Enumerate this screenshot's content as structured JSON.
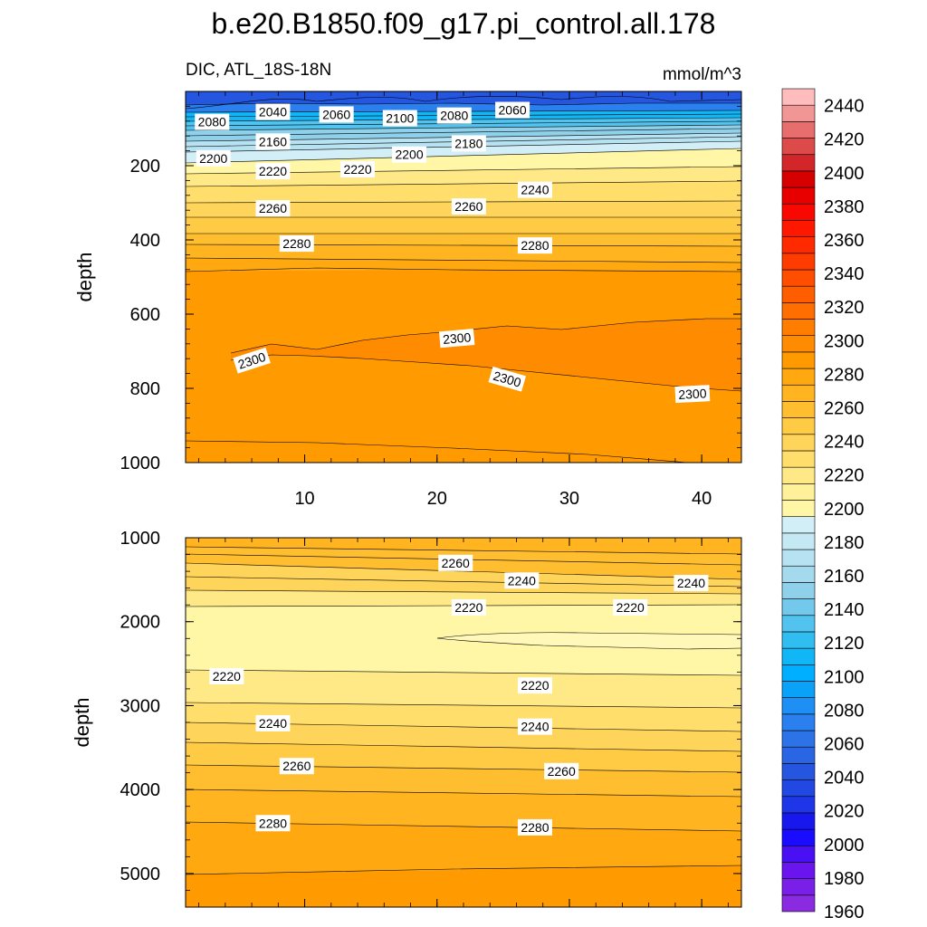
{
  "chart_data": {
    "type": "contour",
    "title": "b.e20.B1850.f09_g17.pi_control.all.178",
    "left_string": "DIC, ATL_18S-18N",
    "right_string": "mmol/m^3",
    "ylabel": "depth",
    "xlim": [
      1,
      43
    ],
    "x_ticks": [
      10,
      20,
      30,
      40
    ],
    "colorbar": {
      "levels": [
        1960,
        1970,
        1980,
        1990,
        2000,
        2010,
        2020,
        2030,
        2040,
        2050,
        2060,
        2070,
        2080,
        2090,
        2100,
        2110,
        2120,
        2130,
        2140,
        2150,
        2160,
        2170,
        2180,
        2190,
        2200,
        2210,
        2220,
        2230,
        2240,
        2250,
        2260,
        2270,
        2280,
        2290,
        2300,
        2310,
        2320,
        2330,
        2340,
        2350,
        2360,
        2370,
        2380,
        2390,
        2400,
        2410,
        2420,
        2430,
        2440,
        2450
      ],
      "labels": [
        1960,
        1980,
        2000,
        2020,
        2040,
        2060,
        2080,
        2100,
        2120,
        2140,
        2160,
        2180,
        2200,
        2220,
        2240,
        2260,
        2280,
        2300,
        2320,
        2340,
        2360,
        2380,
        2400,
        2420,
        2440
      ],
      "colors": [
        "#8a2be2",
        "#7a1fe8",
        "#6a14ee",
        "#4a10f4",
        "#1a0cff",
        "#1818ee",
        "#1f35e8",
        "#2148e2",
        "#2456df",
        "#2a66e4",
        "#2c73e8",
        "#2a80ee",
        "#1e8ff4",
        "#0aa1f8",
        "#00afff",
        "#10b6f6",
        "#30bdf0",
        "#52c3ee",
        "#72c9ec",
        "#8fd1ea",
        "#a4d9ee",
        "#b6e2f2",
        "#c4e8f4",
        "#d2eef6",
        "#fff6a6",
        "#fff09a",
        "#ffe886",
        "#ffde6c",
        "#ffd45a",
        "#ffca44",
        "#ffbe30",
        "#ffb420",
        "#ffa810",
        "#ff9a00",
        "#ff8c00",
        "#ff7e00",
        "#ff6e00",
        "#ff5e00",
        "#ff4e00",
        "#ff3c00",
        "#ff2a00",
        "#ff1800",
        "#f80800",
        "#e80000",
        "#d60000",
        "#d2262a",
        "#dc4a4a",
        "#e86e6e",
        "#f29595",
        "#ffbcbc"
      ]
    },
    "panels": [
      {
        "name": "upper",
        "ylim": [
          0,
          1000
        ],
        "y_ticks": [
          200,
          400,
          600,
          800,
          1000
        ],
        "contour_labels": [
          {
            "text": "2080",
            "x": 3.0,
            "y": 82,
            "angle": 0
          },
          {
            "text": "2040",
            "x": 7.6,
            "y": 55,
            "angle": 0
          },
          {
            "text": "2060",
            "x": 12.4,
            "y": 62,
            "angle": 0
          },
          {
            "text": "2100",
            "x": 17.2,
            "y": 72,
            "angle": 0
          },
          {
            "text": "2080",
            "x": 21.3,
            "y": 65,
            "angle": 0
          },
          {
            "text": "2060",
            "x": 25.7,
            "y": 50,
            "angle": 0
          },
          {
            "text": "2160",
            "x": 7.6,
            "y": 135,
            "angle": 0
          },
          {
            "text": "2180",
            "x": 22.4,
            "y": 140,
            "angle": 0
          },
          {
            "text": "2200",
            "x": 17.9,
            "y": 170,
            "angle": 0
          },
          {
            "text": "2200",
            "x": 3.1,
            "y": 180,
            "angle": 0
          },
          {
            "text": "2220",
            "x": 7.6,
            "y": 215,
            "angle": 0
          },
          {
            "text": "2220",
            "x": 14.0,
            "y": 210,
            "angle": 0
          },
          {
            "text": "2240",
            "x": 27.4,
            "y": 265,
            "angle": 0
          },
          {
            "text": "2260",
            "x": 7.6,
            "y": 315,
            "angle": 0
          },
          {
            "text": "2260",
            "x": 22.4,
            "y": 310,
            "angle": 0
          },
          {
            "text": "2280",
            "x": 9.4,
            "y": 410,
            "angle": 0
          },
          {
            "text": "2280",
            "x": 27.4,
            "y": 415,
            "angle": 0
          },
          {
            "text": "2300",
            "x": 6.0,
            "y": 725,
            "angle": -18
          },
          {
            "text": "2300",
            "x": 21.5,
            "y": 665,
            "angle": -5
          },
          {
            "text": "2300",
            "x": 25.3,
            "y": 775,
            "angle": 16
          },
          {
            "text": "2300",
            "x": 39.3,
            "y": 815,
            "angle": -3
          }
        ]
      },
      {
        "name": "lower",
        "ylim": [
          1000,
          5400
        ],
        "y_ticks": [
          1000,
          2000,
          3000,
          4000,
          5000
        ],
        "contour_labels": [
          {
            "text": "2260",
            "x": 21.4,
            "y": 1300,
            "angle": 0
          },
          {
            "text": "2240",
            "x": 26.4,
            "y": 1510,
            "angle": 0
          },
          {
            "text": "2240",
            "x": 39.2,
            "y": 1540,
            "angle": 0
          },
          {
            "text": "2220",
            "x": 22.4,
            "y": 1830,
            "angle": 0
          },
          {
            "text": "2220",
            "x": 34.6,
            "y": 1830,
            "angle": 0
          },
          {
            "text": "2220",
            "x": 4.1,
            "y": 2650,
            "angle": 0
          },
          {
            "text": "2220",
            "x": 27.4,
            "y": 2760,
            "angle": 0
          },
          {
            "text": "2240",
            "x": 7.6,
            "y": 3210,
            "angle": 0
          },
          {
            "text": "2240",
            "x": 27.4,
            "y": 3250,
            "angle": 0
          },
          {
            "text": "2260",
            "x": 9.4,
            "y": 3720,
            "angle": 0
          },
          {
            "text": "2260",
            "x": 29.4,
            "y": 3780,
            "angle": 0
          },
          {
            "text": "2280",
            "x": 7.6,
            "y": 4400,
            "angle": 0
          },
          {
            "text": "2280",
            "x": 27.4,
            "y": 4450,
            "angle": 0
          }
        ]
      }
    ]
  }
}
